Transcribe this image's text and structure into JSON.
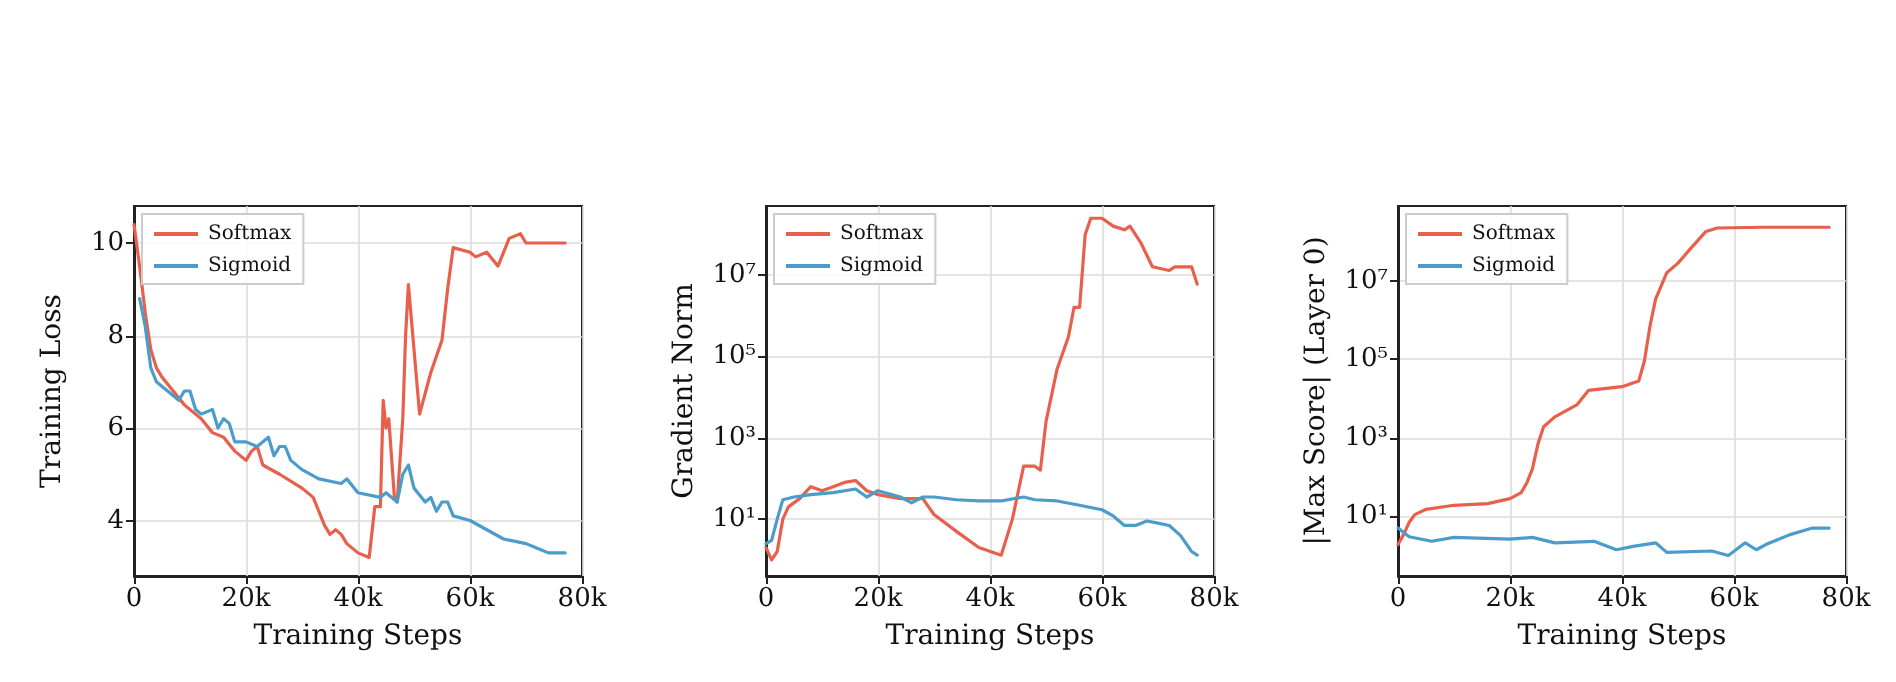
{
  "chart_data": [
    {
      "type": "line",
      "xlabel": "Training Steps",
      "ylabel": "Training Loss",
      "xlim": [
        0,
        80000
      ],
      "xticks": [
        {
          "value": 0,
          "label": "0"
        },
        {
          "value": 20000,
          "label": "20k"
        },
        {
          "value": 40000,
          "label": "40k"
        },
        {
          "value": 60000,
          "label": "60k"
        },
        {
          "value": 80000,
          "label": "80k"
        }
      ],
      "ylim": [
        2.8,
        10.8
      ],
      "yticks": [
        4,
        6,
        8,
        10
      ],
      "grid": true,
      "legend": "top left",
      "line_style": "solid",
      "series": [
        {
          "name": "Softmax",
          "color": "#e8604c",
          "x": [
            0,
            1000,
            2000,
            3000,
            4000,
            5000,
            7000,
            9000,
            12000,
            14000,
            16000,
            18000,
            20000,
            21000,
            22000,
            23000,
            26000,
            30000,
            32000,
            34000,
            35000,
            36000,
            37000,
            38000,
            40000,
            42000,
            43000,
            44000,
            44500,
            45000,
            45500,
            46500,
            47000,
            48000,
            48500,
            49000,
            51000,
            53000,
            55000,
            56000,
            57000,
            60000,
            61000,
            63000,
            65000,
            67000,
            69000,
            70000,
            77000
          ],
          "values": [
            10.4,
            9.5,
            8.5,
            7.7,
            7.3,
            7.1,
            6.8,
            6.5,
            6.2,
            5.9,
            5.8,
            5.5,
            5.3,
            5.5,
            5.6,
            5.2,
            5.0,
            4.7,
            4.5,
            3.9,
            3.7,
            3.8,
            3.7,
            3.5,
            3.3,
            3.2,
            4.3,
            4.3,
            6.6,
            6.0,
            6.2,
            4.5,
            4.4,
            6.2,
            8.0,
            9.1,
            6.3,
            7.2,
            7.9,
            9.0,
            9.9,
            9.8,
            9.7,
            9.8,
            9.5,
            10.1,
            10.2,
            10.0,
            10.0
          ]
        },
        {
          "name": "Sigmoid",
          "color": "#4b9bcb",
          "x": [
            1000,
            2000,
            3000,
            4000,
            6000,
            8000,
            9000,
            10000,
            11000,
            12000,
            14000,
            15000,
            16000,
            17000,
            18000,
            20000,
            22000,
            24000,
            25000,
            26000,
            27000,
            28000,
            30000,
            33000,
            37000,
            38000,
            40000,
            44000,
            45000,
            47000,
            48000,
            49000,
            50000,
            52000,
            53000,
            54000,
            55000,
            56000,
            57000,
            60000,
            63000,
            66000,
            70000,
            72000,
            74000,
            77000
          ],
          "values": [
            8.8,
            8.2,
            7.3,
            7.0,
            6.8,
            6.6,
            6.8,
            6.8,
            6.4,
            6.3,
            6.4,
            6.0,
            6.2,
            6.1,
            5.7,
            5.7,
            5.6,
            5.8,
            5.4,
            5.6,
            5.6,
            5.3,
            5.1,
            4.9,
            4.8,
            4.9,
            4.6,
            4.5,
            4.6,
            4.4,
            5.0,
            5.2,
            4.7,
            4.4,
            4.5,
            4.2,
            4.4,
            4.4,
            4.1,
            4.0,
            3.8,
            3.6,
            3.5,
            3.4,
            3.3,
            3.3
          ]
        }
      ]
    },
    {
      "type": "line",
      "xlabel": "Training Steps",
      "ylabel": "Gradient Norm",
      "xlim": [
        0,
        80000
      ],
      "xticks": [
        {
          "value": 0,
          "label": "0"
        },
        {
          "value": 20000,
          "label": "20k"
        },
        {
          "value": 40000,
          "label": "40k"
        },
        {
          "value": 60000,
          "label": "60k"
        },
        {
          "value": 80000,
          "label": "80k"
        }
      ],
      "ylim": [
        0.4,
        500000000
      ],
      "yticks": [
        {
          "value": 10,
          "label": "10¹"
        },
        {
          "value": 1000,
          "label": "10³"
        },
        {
          "value": 100000,
          "label": "10⁵"
        },
        {
          "value": 10000000,
          "label": "10⁷"
        }
      ],
      "log": "y",
      "grid": true,
      "legend": "top left",
      "line_style": "solid",
      "series": [
        {
          "name": "Softmax",
          "color": "#e8604c",
          "x": [
            0,
            1000,
            2000,
            3000,
            4000,
            6000,
            8000,
            10000,
            12000,
            14000,
            16000,
            18000,
            20000,
            24000,
            28000,
            30000,
            34000,
            38000,
            42000,
            44000,
            46000,
            48000,
            49000,
            50000,
            52000,
            54000,
            55000,
            56000,
            57000,
            58000,
            60000,
            62000,
            64000,
            65000,
            67000,
            69000,
            72000,
            73000,
            76000,
            77000
          ],
          "values": [
            2,
            1,
            1.6,
            10,
            20,
            32,
            63,
            50,
            63,
            80,
            89,
            50,
            40,
            32,
            32,
            13,
            5,
            2,
            1.3,
            10,
            200,
            200,
            160,
            2500,
            50000,
            300000,
            1600000,
            1600000,
            100000000,
            250000000,
            250000000,
            160000000,
            130000000,
            160000000,
            60000000,
            16000000,
            13000000,
            16000000,
            16000000,
            6000000
          ]
        },
        {
          "name": "Sigmoid",
          "color": "#4b9bcb",
          "x": [
            0,
            1000,
            2000,
            3000,
            5000,
            8000,
            12000,
            16000,
            18000,
            20000,
            24000,
            26000,
            28000,
            30000,
            34000,
            38000,
            42000,
            46000,
            48000,
            52000,
            56000,
            60000,
            62000,
            64000,
            66000,
            68000,
            70000,
            72000,
            74000,
            76000,
            77000
          ],
          "values": [
            2.5,
            3,
            10,
            30,
            35,
            40,
            45,
            55,
            35,
            50,
            35,
            25,
            35,
            35,
            30,
            28,
            28,
            35,
            30,
            28,
            22,
            17,
            12,
            7,
            7,
            9,
            8,
            7,
            4,
            1.6,
            1.3
          ]
        }
      ]
    },
    {
      "type": "line",
      "xlabel": "Training Steps",
      "ylabel": "|Max Score| (Layer 0)",
      "xlim": [
        0,
        80000
      ],
      "xticks": [
        {
          "value": 0,
          "label": "0"
        },
        {
          "value": 20000,
          "label": "20k"
        },
        {
          "value": 40000,
          "label": "40k"
        },
        {
          "value": 60000,
          "label": "60k"
        },
        {
          "value": 80000,
          "label": "80k"
        }
      ],
      "ylim": [
        0.3,
        800000000
      ],
      "yticks": [
        {
          "value": 10,
          "label": "10¹"
        },
        {
          "value": 1000,
          "label": "10³"
        },
        {
          "value": 100000,
          "label": "10⁵"
        },
        {
          "value": 10000000,
          "label": "10⁷"
        }
      ],
      "log": "y",
      "grid": true,
      "legend": "top left",
      "line_style": "solid",
      "series": [
        {
          "name": "Softmax",
          "color": "#e8604c",
          "x": [
            0,
            1000,
            2000,
            3000,
            5000,
            10000,
            16000,
            20000,
            22000,
            23000,
            24000,
            25000,
            26000,
            28000,
            32000,
            34000,
            40000,
            43000,
            44000,
            45000,
            46000,
            48000,
            50000,
            52000,
            55000,
            57000,
            65000,
            77000
          ],
          "values": [
            1.9,
            3.4,
            7,
            11,
            15,
            19,
            21,
            28,
            40,
            70,
            160,
            700,
            1900,
            3400,
            7000,
            16000,
            20000,
            28000,
            90000,
            700000,
            3400000,
            16000000,
            28000000,
            60000000,
            180000000,
            220000000,
            230000000,
            230000000
          ]
        },
        {
          "name": "Sigmoid",
          "color": "#4b9bcb",
          "x": [
            0,
            2000,
            6000,
            10000,
            20000,
            24000,
            28000,
            35000,
            39000,
            42000,
            46000,
            48000,
            56000,
            59000,
            62000,
            64000,
            66000,
            70000,
            74000,
            77000
          ],
          "values": [
            5,
            3,
            2.3,
            2.9,
            2.6,
            2.9,
            2.1,
            2.3,
            1.4,
            1.7,
            2.1,
            1.2,
            1.3,
            1,
            2.1,
            1.4,
            2,
            3.4,
            5,
            5
          ]
        }
      ]
    }
  ]
}
